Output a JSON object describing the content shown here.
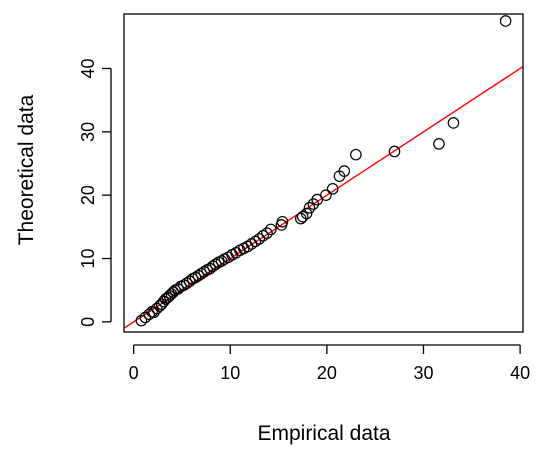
{
  "chart_data": {
    "type": "scatter",
    "title": "",
    "xlabel": "Empirical data",
    "ylabel": "Theoretical data",
    "xlim": [
      -1,
      40.3
    ],
    "ylim": [
      -1.6,
      48.6
    ],
    "xticks": [
      0,
      10,
      20,
      30,
      40
    ],
    "yticks": [
      0,
      10,
      20,
      30,
      40
    ],
    "grid": false,
    "legend": "none",
    "marker": "open-circle",
    "colors": {
      "points": "#000000",
      "reference_line": "#ff0000",
      "frame": "#000000"
    },
    "reference_line": {
      "slope": 1,
      "intercept": 0
    },
    "series": [
      {
        "x": [
          0.8,
          1.2,
          1.6,
          1.9,
          2.1,
          2.4,
          2.7,
          2.9,
          3.1,
          3.3,
          3.5,
          3.7,
          3.9,
          4.1,
          4.3,
          4.6,
          4.9,
          5.2,
          5.5,
          5.8,
          6.1,
          6.4,
          6.7,
          7.0,
          7.3,
          7.6,
          7.9,
          8.2,
          8.5,
          8.8,
          9.1,
          9.4,
          9.8,
          10.2,
          10.6,
          11.0,
          11.4,
          11.8,
          12.2,
          12.6,
          13.0,
          13.4,
          13.8,
          14.2,
          15.3,
          15.4,
          17.3,
          17.5,
          17.9,
          18.2,
          18.6,
          19.0,
          19.9,
          20.6,
          21.3,
          21.8,
          23.0,
          27.0,
          31.6,
          33.1,
          38.5
        ],
        "y": [
          0.2,
          0.7,
          1.2,
          1.6,
          1.5,
          2.1,
          2.5,
          2.8,
          3.2,
          3.6,
          3.8,
          4.1,
          4.4,
          4.7,
          5.0,
          5.2,
          5.6,
          5.8,
          6.1,
          6.4,
          6.8,
          7.0,
          7.3,
          7.6,
          7.9,
          8.2,
          8.4,
          8.8,
          9.1,
          9.4,
          9.6,
          9.9,
          10.2,
          10.6,
          10.9,
          11.3,
          11.6,
          11.9,
          12.3,
          12.7,
          13.1,
          13.6,
          14.0,
          14.6,
          15.3,
          15.8,
          16.3,
          16.6,
          17.1,
          18.0,
          18.6,
          19.3,
          20.0,
          21.0,
          23.0,
          23.8,
          26.4,
          26.9,
          28.1,
          31.4,
          47.5
        ]
      }
    ]
  }
}
